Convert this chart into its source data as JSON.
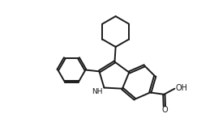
{
  "background_color": "#ffffff",
  "line_color": "#1a1a1a",
  "line_width": 1.4,
  "figsize": [
    2.64,
    1.72
  ],
  "dpi": 100,
  "xlim": [
    0,
    11
  ],
  "ylim": [
    0,
    7.2
  ]
}
